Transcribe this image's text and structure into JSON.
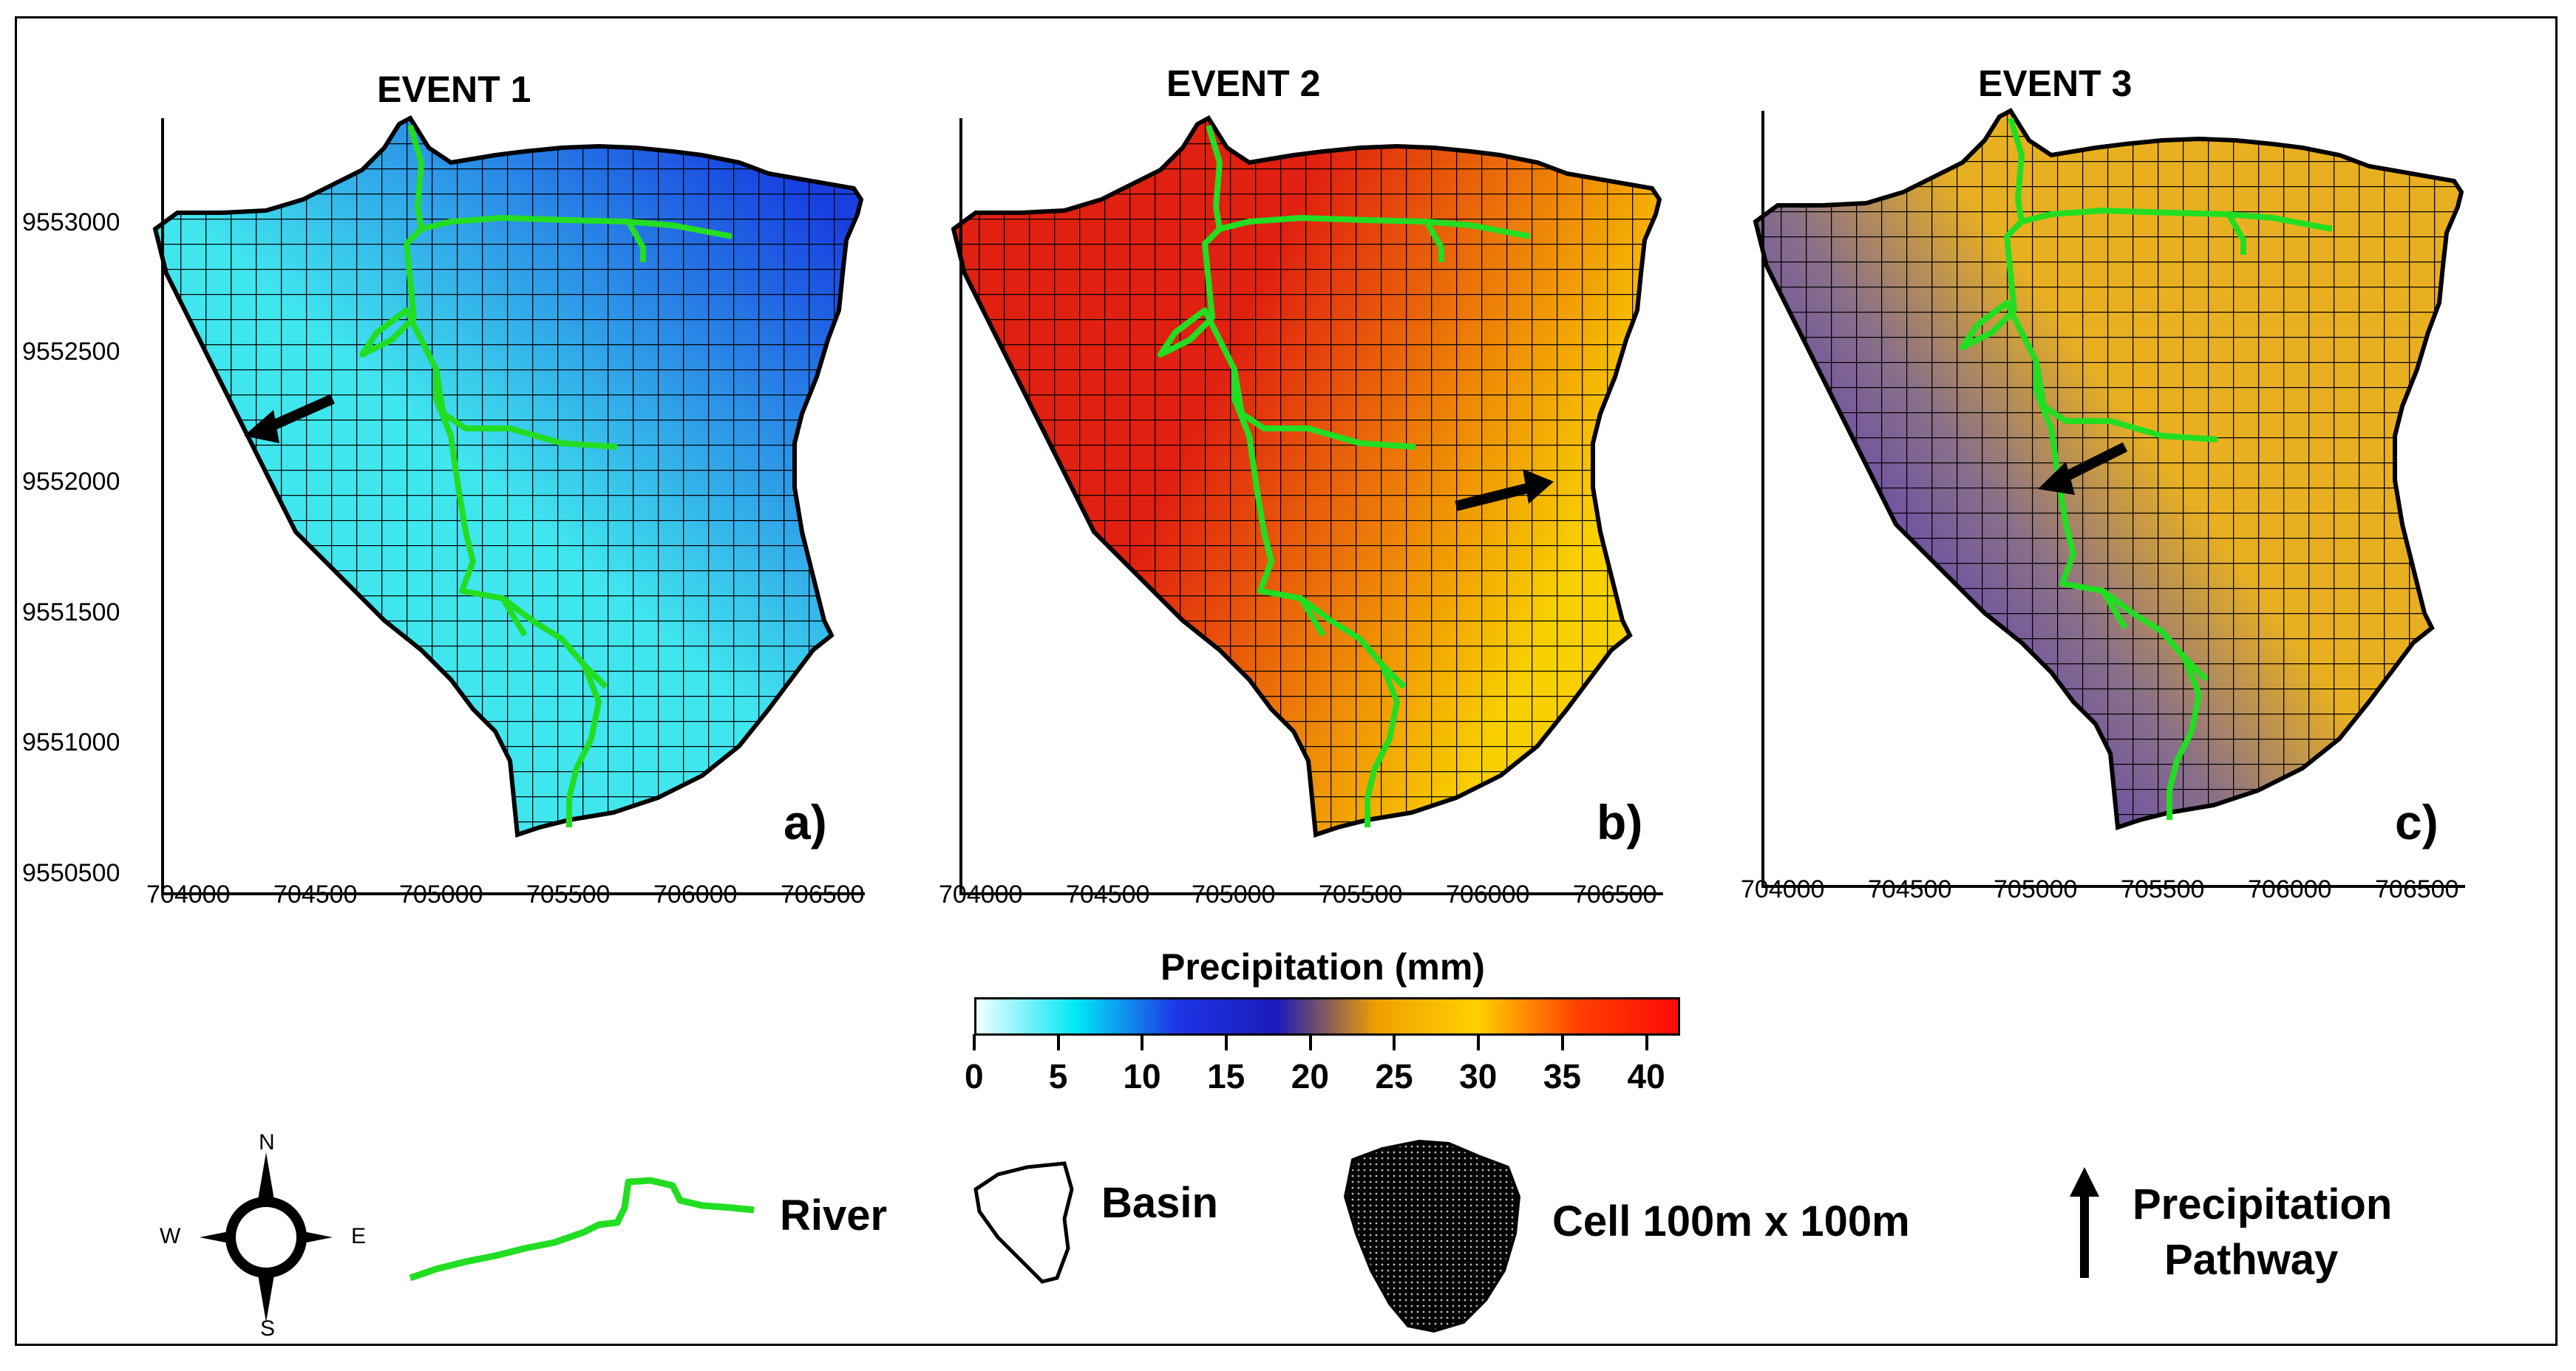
{
  "panels": [
    {
      "title": "EVENT 1",
      "label": "a)",
      "arrow": "west"
    },
    {
      "title": "EVENT 2",
      "label": "b)",
      "arrow": "east"
    },
    {
      "title": "EVENT 3",
      "label": "c)",
      "arrow": "west"
    }
  ],
  "axes": {
    "x_ticks": [
      "704000",
      "704500",
      "705000",
      "705500",
      "706000",
      "706500"
    ],
    "y_ticks": [
      "9553000",
      "9552500",
      "9552000",
      "9551500",
      "9551000",
      "9550500"
    ]
  },
  "colorbar": {
    "title": "Precipitation (mm)",
    "ticks": [
      "0",
      "5",
      "10",
      "15",
      "20",
      "25",
      "30",
      "35",
      "40"
    ],
    "colors": [
      "#f2ffff",
      "#00e8f5",
      "#1e35e6",
      "#1a1ab8",
      "#f0a000",
      "#ffd000",
      "#ff4000",
      "#ff0a0a"
    ]
  },
  "legend": {
    "compass": {
      "n": "N",
      "s": "S",
      "e": "E",
      "w": "W"
    },
    "river": "River",
    "basin": "Basin",
    "cell": "Cell 100m x 100m",
    "pathway_line1": "Precipitation",
    "pathway_line2": "Pathway"
  },
  "colors": {
    "river": "#22dd22",
    "event1": [
      "#40e6ee",
      "#1840e0"
    ],
    "event2": [
      "#e02010",
      "#f8d000"
    ],
    "event3": [
      "#3010e0",
      "#8a7088",
      "#e8b020"
    ]
  }
}
